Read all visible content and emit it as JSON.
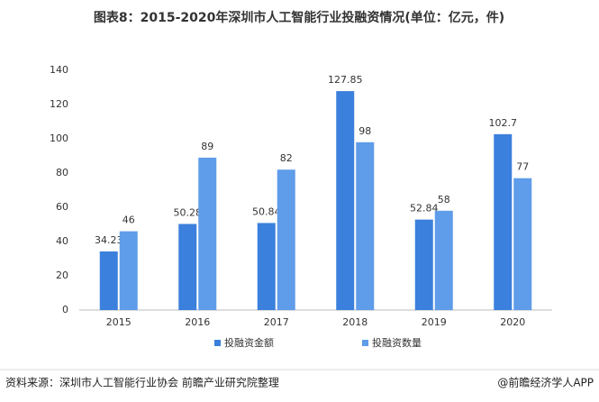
{
  "chart_data": {
    "type": "bar",
    "title": "图表8：2015-2020年深圳市人工智能行业投融资情况(单位：亿元，件)",
    "categories": [
      "2015",
      "2016",
      "2017",
      "2018",
      "2019",
      "2020"
    ],
    "series": [
      {
        "name": "投融资金额",
        "color": "#3b80dc",
        "values": [
          34.23,
          50.28,
          50.84,
          127.85,
          52.84,
          102.7
        ]
      },
      {
        "name": "投融资数量",
        "color": "#5f9ce9",
        "values": [
          46,
          89,
          82,
          98,
          58,
          77
        ]
      }
    ],
    "ylim": [
      0,
      140
    ],
    "yticks": [
      0,
      20,
      40,
      60,
      80,
      100,
      120,
      140
    ],
    "grid": false,
    "legend": "bottom",
    "source": "资料来源：深圳市人工智能行业协会 前瞻产业研究院整理",
    "credit": "@前瞻经济学人APP"
  }
}
